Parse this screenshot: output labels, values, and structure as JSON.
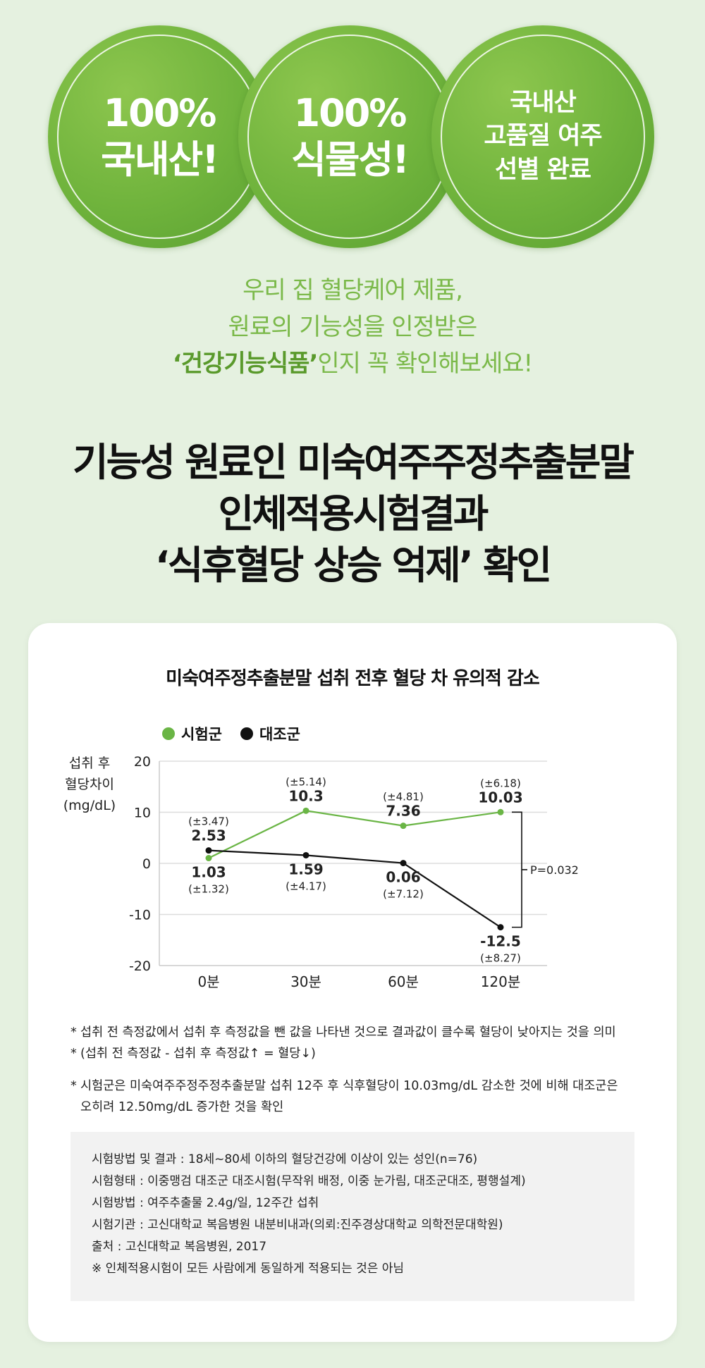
{
  "badges": [
    {
      "line1": "100%",
      "line2": "국내산!"
    },
    {
      "line1": "100%",
      "line2": "식물성!"
    },
    {
      "line1": "국내산",
      "line2": "고품질 여주",
      "line3": "선별 완료"
    }
  ],
  "intro": {
    "line1": "우리 집 혈당케어 제품,",
    "line2": "원료의 기능성을 인정받은",
    "line3_strong": "‘건강기능식품’",
    "line3_rest": "인지 꼭 확인해보세요!"
  },
  "headline": {
    "line1": "기능성 원료인 미숙여주주정추출분말",
    "line2": "인체적용시험결과",
    "line3": "‘식후혈당 상승 억제’ 확인"
  },
  "colors": {
    "test": "#6ab545",
    "control": "#111111",
    "brand": "#7bb94a"
  },
  "chart_data": {
    "type": "line",
    "title": "미숙여주정추출분말 섭취 전후 혈당 차 유의적 감소",
    "ylabel": [
      "섭취 후",
      "혈당차이",
      "(mg/dL)"
    ],
    "categories": [
      "0분",
      "30분",
      "60분",
      "120분"
    ],
    "ylim": [
      -20,
      20
    ],
    "yticks": [
      "20",
      "10",
      "0",
      "-10",
      "-20"
    ],
    "grid": true,
    "legend_position": "top-left",
    "series": [
      {
        "name": "시험군",
        "values": [
          1.03,
          10.3,
          7.36,
          10.03
        ],
        "labels": [
          "1.03",
          "10.3",
          "7.36",
          "10.03"
        ],
        "sd": [
          "(±1.32)",
          "(±5.14)",
          "(±4.81)",
          "(±6.18)"
        ]
      },
      {
        "name": "대조군",
        "values": [
          2.53,
          1.59,
          0.06,
          -12.5
        ],
        "labels": [
          "2.53",
          "1.59",
          "0.06",
          "-12.5"
        ],
        "sd": [
          "(±3.47)",
          "(±4.17)",
          "(±7.12)",
          "(±8.27)"
        ]
      }
    ],
    "annotation": "P=0.032"
  },
  "notes": [
    "섭취 전 측정값에서 섭취 후 측정값을 뺀 값을 나타낸 것으로 결과값이 클수록 혈당이 낮아지는 것을 의미",
    "(섭취 전 측정값 - 섭취 후 측정값↑ = 혈당↓)",
    "시험군은 미숙여주주정주정추출분말 섭취 12주 후 식후혈당이 10.03mg/dL 감소한 것에 비해 대조군은",
    "오히려 12.50mg/dL 증가한 것을 확인"
  ],
  "method": [
    "시험방법 및 결과 : 18세~80세 이하의 혈당건강에 이상이 있는 성인(n=76)",
    "시험형태 : 이중맹검 대조군 대조시험(무작위 배정, 이중 눈가림, 대조군대조, 평행설계)",
    "시험방법 : 여주추출물 2.4g/일, 12주간 섭취",
    "시험기관 : 고신대학교 복음병원 내분비내과(의뢰:진주경상대학교 의학전문대학원)",
    "출처 : 고신대학교 복음병원, 2017",
    "※ 인체적용시험이 모든 사람에게 동일하게 적용되는 것은 아님"
  ]
}
